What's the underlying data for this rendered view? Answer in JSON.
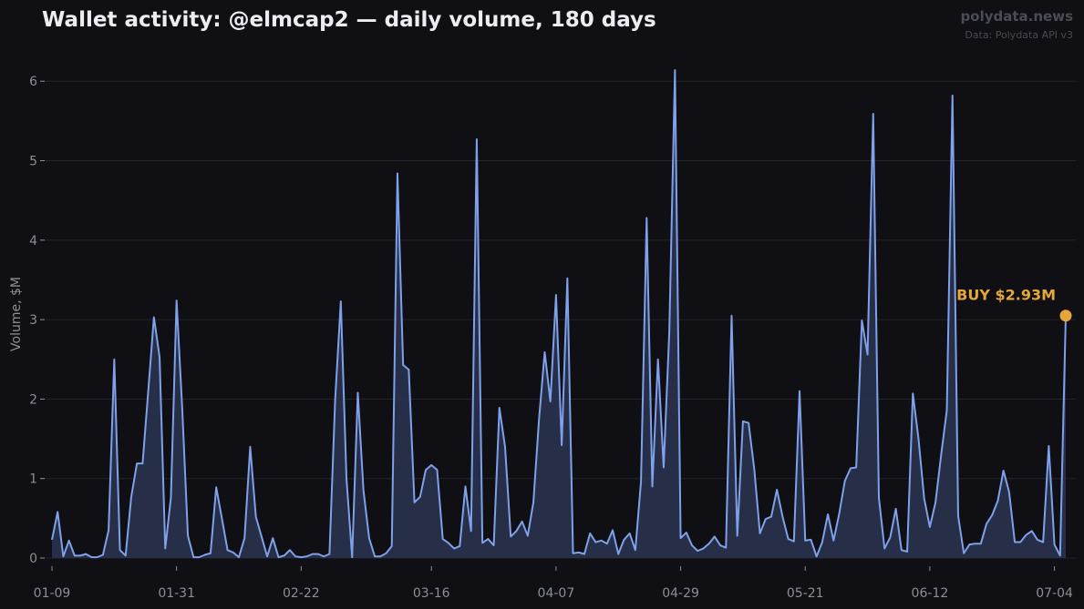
{
  "header": {
    "title": "Wallet activity: @elmcap2 — daily volume, 180 days",
    "brand": "polydata.news",
    "source": "Data: Polydata API v3"
  },
  "colors": {
    "background": "#0f0f14",
    "line": "#7ea1ea",
    "fill": "#2a3550",
    "grid": "#23242c",
    "annotation": "#e5a63a"
  },
  "chart_data": {
    "type": "area",
    "ylabel": "Volume, $M",
    "ylim": [
      0,
      6.3
    ],
    "yticks": [
      0,
      1,
      2,
      3,
      4,
      5,
      6
    ],
    "grid": true,
    "x_start": "2024-01-09",
    "x_end": "2024-07-06",
    "xticks": [
      {
        "date": "2024-01-09",
        "label": "01-09"
      },
      {
        "date": "2024-01-31",
        "label": "01-31"
      },
      {
        "date": "2024-02-22",
        "label": "02-22"
      },
      {
        "date": "2024-03-16",
        "label": "03-16"
      },
      {
        "date": "2024-04-07",
        "label": "04-07"
      },
      {
        "date": "2024-04-29",
        "label": "04-29"
      },
      {
        "date": "2024-05-21",
        "label": "05-21"
      },
      {
        "date": "2024-06-12",
        "label": "06-12"
      },
      {
        "date": "2024-07-04",
        "label": "07-04"
      }
    ],
    "series": [
      {
        "values": [
          0.23,
          0.58,
          0.02,
          0.22,
          0.03,
          0.03,
          0.05,
          0.01,
          0.01,
          0.04,
          0.35,
          2.5,
          0.1,
          0.03,
          0.77,
          1.19,
          1.19,
          2.1,
          3.03,
          2.53,
          0.12,
          0.76,
          3.24,
          1.88,
          0.28,
          0.01,
          0.01,
          0.04,
          0.06,
          0.89,
          0.5,
          0.1,
          0.07,
          0.01,
          0.25,
          1.4,
          0.52,
          0.27,
          0.02,
          0.25,
          0.01,
          0.03,
          0.1,
          0.02,
          0.01,
          0.02,
          0.05,
          0.05,
          0.02,
          0.05,
          1.99,
          3.23,
          1.0,
          0.01,
          2.08,
          0.85,
          0.25,
          0.02,
          0.02,
          0.06,
          0.15,
          4.84,
          2.43,
          2.37,
          0.7,
          0.77,
          1.11,
          1.17,
          1.11,
          0.24,
          0.19,
          0.12,
          0.15,
          0.9,
          0.34,
          5.27,
          0.19,
          0.24,
          0.16,
          1.89,
          1.4,
          0.27,
          0.34,
          0.46,
          0.28,
          0.7,
          1.75,
          2.59,
          1.97,
          3.31,
          1.42,
          3.52,
          0.06,
          0.07,
          0.05,
          0.31,
          0.2,
          0.22,
          0.18,
          0.35,
          0.05,
          0.23,
          0.31,
          0.1,
          0.96,
          4.28,
          0.9,
          2.5,
          1.14,
          2.85,
          6.14,
          0.25,
          0.32,
          0.16,
          0.09,
          0.12,
          0.18,
          0.27,
          0.16,
          0.13,
          3.05,
          0.28,
          1.72,
          1.7,
          1.12,
          0.31,
          0.49,
          0.52,
          0.86,
          0.52,
          0.24,
          0.21,
          2.1,
          0.22,
          0.23,
          0.02,
          0.2,
          0.55,
          0.22,
          0.56,
          0.97,
          1.13,
          1.14,
          2.99,
          2.56,
          5.59,
          0.76,
          0.12,
          0.26,
          0.62,
          0.1,
          0.08,
          2.07,
          1.5,
          0.75,
          0.39,
          0.7,
          1.3,
          1.86,
          5.82,
          0.53,
          0.06,
          0.17,
          0.18,
          0.18,
          0.43,
          0.54,
          0.72,
          1.1,
          0.83,
          0.2,
          0.2,
          0.29,
          0.34,
          0.23,
          0.2,
          1.41,
          0.17,
          0.03,
          3.05
        ]
      }
    ],
    "annotations": [
      {
        "label": "BUY $2.93M",
        "date": "2024-07-06",
        "value": 3.05
      }
    ]
  }
}
